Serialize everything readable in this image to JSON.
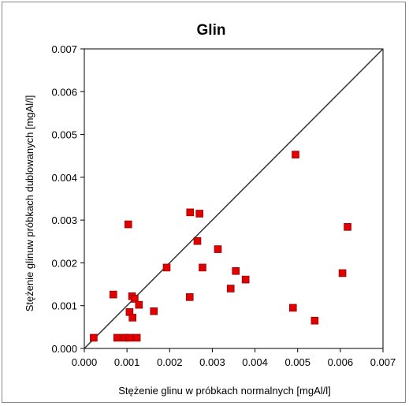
{
  "chart_data": {
    "type": "scatter",
    "title": "Glin",
    "xlabel": "Stężenie glinu w próbkach normalnych [mgAl/l]",
    "ylabel": "Stężenie glinuw próbkach dublowanych  [mgAl/l]",
    "xlim": [
      0,
      0.007
    ],
    "ylim": [
      0,
      0.007
    ],
    "x_ticks": [
      "0.000",
      "0.001",
      "0.002",
      "0.003",
      "0.004",
      "0.005",
      "0.006",
      "0.007"
    ],
    "y_ticks": [
      "0.000",
      "0.001",
      "0.002",
      "0.003",
      "0.004",
      "0.005",
      "0.006",
      "0.007"
    ],
    "grid": false,
    "legend": "none",
    "reference_line": {
      "type": "y=x",
      "color": "#333333"
    },
    "series": [
      {
        "marker": "square",
        "color": "#e00000",
        "points": [
          [
            0.00022,
            0.00025
          ],
          [
            0.00068,
            0.00126
          ],
          [
            0.00077,
            0.00025
          ],
          [
            0.00095,
            0.00025
          ],
          [
            0.00103,
            0.0029
          ],
          [
            0.00106,
            0.00085
          ],
          [
            0.00106,
            0.00025
          ],
          [
            0.00112,
            0.00122
          ],
          [
            0.00113,
            0.00072
          ],
          [
            0.00118,
            0.00116
          ],
          [
            0.00123,
            0.00025
          ],
          [
            0.00128,
            0.00102
          ],
          [
            0.00163,
            0.00087
          ],
          [
            0.00193,
            0.00189
          ],
          [
            0.00247,
            0.0012
          ],
          [
            0.00248,
            0.00318
          ],
          [
            0.00265,
            0.00251
          ],
          [
            0.0027,
            0.00315
          ],
          [
            0.00277,
            0.00189
          ],
          [
            0.00313,
            0.00232
          ],
          [
            0.00343,
            0.0014
          ],
          [
            0.00355,
            0.00181
          ],
          [
            0.00378,
            0.00161
          ],
          [
            0.00489,
            0.00095
          ],
          [
            0.00495,
            0.00453
          ],
          [
            0.0054,
            0.00065
          ],
          [
            0.00605,
            0.00176
          ],
          [
            0.00617,
            0.00284
          ]
        ]
      }
    ]
  }
}
